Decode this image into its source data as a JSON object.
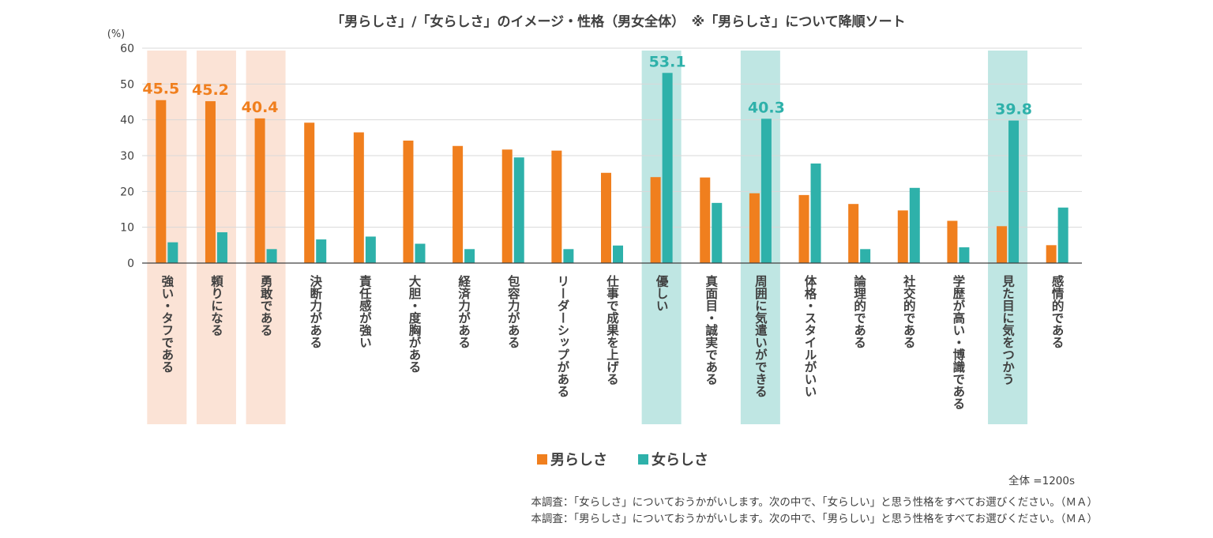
{
  "chart_data": {
    "type": "bar",
    "title": "「男らしさ」/「女らしさ」のイメージ・性格（男女全体）　※「男らしさ」について降順ソート",
    "ylabel": "(%)",
    "ylim": [
      0,
      60
    ],
    "yticks": [
      0,
      10,
      20,
      30,
      40,
      50,
      60
    ],
    "grid": true,
    "legend_position": "bottom",
    "categories": [
      "強い・タフである",
      "頼りになる",
      "勇敢である",
      "決断力がある",
      "責任感が強い",
      "大胆・度胸がある",
      "経済力がある",
      "包容力がある",
      "リーダーシップがある",
      "仕事で成果を上げる",
      "優しい",
      "真面目・誠実である",
      "周囲に気遣いができる",
      "体格・スタイルがいい",
      "論理的である",
      "社交的である",
      "学歴が高い・博識である",
      "見た目に気をつかう",
      "感情的である"
    ],
    "series": [
      {
        "name": "男らしさ",
        "color": "#F07F1E",
        "values": [
          45.5,
          45.2,
          40.4,
          39.2,
          36.5,
          34.2,
          32.7,
          31.7,
          31.4,
          25.2,
          24.0,
          23.9,
          19.5,
          19.0,
          16.5,
          14.7,
          11.8,
          10.3,
          5.0
        ]
      },
      {
        "name": "女らしさ",
        "color": "#2EB1AA",
        "values": [
          5.8,
          8.6,
          3.9,
          6.6,
          7.4,
          5.4,
          3.9,
          29.5,
          3.9,
          4.9,
          53.1,
          16.8,
          40.3,
          27.8,
          3.9,
          21.0,
          4.4,
          39.8,
          15.5
        ]
      }
    ],
    "highlights": [
      {
        "category_index": 0,
        "series": 0,
        "label": "45.5",
        "band_color": "#FBE3D6"
      },
      {
        "category_index": 1,
        "series": 0,
        "label": "45.2",
        "band_color": "#FBE3D6"
      },
      {
        "category_index": 2,
        "series": 0,
        "label": "40.4",
        "band_color": "#FBE3D6"
      },
      {
        "category_index": 10,
        "series": 1,
        "label": "53.1",
        "band_color": "#BFE6E3"
      },
      {
        "category_index": 12,
        "series": 1,
        "label": "40.3",
        "band_color": "#BFE6E3"
      },
      {
        "category_index": 17,
        "series": 1,
        "label": "39.8",
        "band_color": "#BFE6E3"
      }
    ],
    "sample_note": "全体 =1200s",
    "footnotes": [
      "本調査：「女らしさ」についておうかがいします。次の中で、「女らしい」と思う性格をすべてお選びください。（ＭＡ）",
      "本調査：「男らしさ」についておうかがいします。次の中で、「男らしい」と思う性格をすべてお選びください。（ＭＡ）"
    ]
  }
}
